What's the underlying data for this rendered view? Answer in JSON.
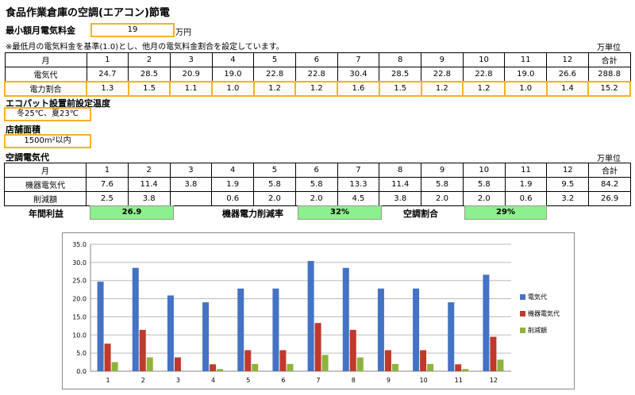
{
  "title": "食品作業倉庫の空調(エアコン)節電",
  "min_fee": {
    "label": "最小額月電気料金",
    "value": "19",
    "unit": "万円"
  },
  "note": "※最低月の電気料金を基準(1.0)とし、他月の電気料金割合を設定しています。",
  "unit_label_1": "万単位",
  "unit_label_2": "万単位",
  "table1": {
    "header": [
      "月",
      "1",
      "2",
      "3",
      "4",
      "5",
      "6",
      "7",
      "8",
      "9",
      "10",
      "11",
      "12",
      "合計"
    ],
    "rows": [
      [
        "電気代",
        "24.7",
        "28.5",
        "20.9",
        "19.0",
        "22.8",
        "22.8",
        "30.4",
        "28.5",
        "22.8",
        "22.8",
        "19.0",
        "26.6",
        "288.8"
      ],
      [
        "電力割合",
        "1.3",
        "1.5",
        "1.1",
        "1.0",
        "1.2",
        "1.2",
        "1.6",
        "1.5",
        "1.2",
        "1.2",
        "1.0",
        "1.4",
        "15.2"
      ]
    ]
  },
  "temp": {
    "label": "エコパット設置前設定温度",
    "value": "冬25℃、夏23℃"
  },
  "area": {
    "label": "店舗面積",
    "value": "1500m²以内"
  },
  "ac_title": "空調電気代",
  "table2": {
    "header": [
      "月",
      "1",
      "2",
      "3",
      "4",
      "5",
      "6",
      "7",
      "8",
      "9",
      "10",
      "11",
      "12",
      "合計"
    ],
    "rows": [
      [
        "機器電気代",
        "7.6",
        "11.4",
        "3.8",
        "1.9",
        "5.8",
        "5.8",
        "13.3",
        "11.4",
        "5.8",
        "5.8",
        "1.9",
        "9.5",
        "84.2"
      ],
      [
        "削減額",
        "2.5",
        "3.8",
        "",
        "0.6",
        "2.0",
        "2.0",
        "4.5",
        "3.8",
        "2.0",
        "2.0",
        "0.6",
        "3.2",
        "26.9"
      ]
    ]
  },
  "summary": {
    "annual_profit_label": "年間利益",
    "annual_profit_value": "26.9",
    "reduction_rate_label": "機器電力削減率",
    "reduction_rate_value": "32%",
    "ac_ratio_label": "空調割合",
    "ac_ratio_value": "29%"
  },
  "colors": {
    "electricity": "#4472c4",
    "device": "#c0392b",
    "reduction": "#8db33c",
    "highlight": "#f4b223",
    "green": "#8cf08c"
  },
  "chart_data": {
    "type": "bar",
    "categories": [
      "1",
      "2",
      "3",
      "4",
      "5",
      "6",
      "7",
      "8",
      "9",
      "10",
      "11",
      "12"
    ],
    "series": [
      {
        "name": "電気代",
        "values": [
          24.7,
          28.5,
          20.9,
          19.0,
          22.8,
          22.8,
          30.4,
          28.5,
          22.8,
          22.8,
          19.0,
          26.6
        ]
      },
      {
        "name": "機器電気代",
        "values": [
          7.6,
          11.4,
          3.8,
          1.9,
          5.8,
          5.8,
          13.3,
          11.4,
          5.8,
          5.8,
          1.9,
          9.5
        ]
      },
      {
        "name": "削減額",
        "values": [
          2.5,
          3.8,
          0,
          0.6,
          2.0,
          2.0,
          4.5,
          3.8,
          2.0,
          2.0,
          0.6,
          3.2
        ]
      }
    ],
    "ylim": [
      0,
      35
    ],
    "yticks": [
      "0.0",
      "5.0",
      "10.0",
      "15.0",
      "20.0",
      "25.0",
      "30.0",
      "35.0"
    ],
    "grid": true,
    "legend": "right"
  }
}
